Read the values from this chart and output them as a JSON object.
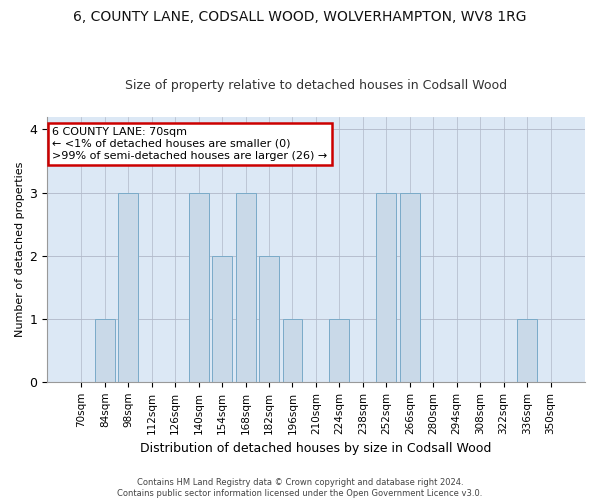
{
  "title": "6, COUNTY LANE, CODSALL WOOD, WOLVERHAMPTON, WV8 1RG",
  "subtitle": "Size of property relative to detached houses in Codsall Wood",
  "xlabel": "Distribution of detached houses by size in Codsall Wood",
  "ylabel": "Number of detached properties",
  "categories": [
    "70sqm",
    "84sqm",
    "98sqm",
    "112sqm",
    "126sqm",
    "140sqm",
    "154sqm",
    "168sqm",
    "182sqm",
    "196sqm",
    "210sqm",
    "224sqm",
    "238sqm",
    "252sqm",
    "266sqm",
    "280sqm",
    "294sqm",
    "308sqm",
    "322sqm",
    "336sqm",
    "350sqm"
  ],
  "values": [
    0,
    1,
    3,
    0,
    0,
    3,
    2,
    3,
    2,
    1,
    0,
    1,
    0,
    3,
    3,
    0,
    0,
    0,
    0,
    1,
    0
  ],
  "bar_color": "#c9d9e8",
  "bar_edge_color": "#7aaac8",
  "annotation_line1": "6 COUNTY LANE: 70sqm",
  "annotation_line2": "← <1% of detached houses are smaller (0)",
  "annotation_line3": ">99% of semi-detached houses are larger (26) →",
  "annotation_box_color": "#ffffff",
  "annotation_box_edge_color": "#cc0000",
  "footer_line1": "Contains HM Land Registry data © Crown copyright and database right 2024.",
  "footer_line2": "Contains public sector information licensed under the Open Government Licence v3.0.",
  "ylim": [
    0,
    4.2
  ],
  "axes_background": "#dce8f5",
  "title_fontsize": 10,
  "subtitle_fontsize": 9,
  "ylabel_fontsize": 8,
  "xlabel_fontsize": 9,
  "tick_fontsize": 7.5,
  "footer_fontsize": 6.0
}
